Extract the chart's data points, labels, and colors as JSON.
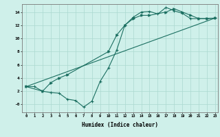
{
  "xlabel": "Humidex (Indice chaleur)",
  "bg_color": "#cff0ea",
  "grid_color": "#aad8d0",
  "line_color": "#1a6e60",
  "xlim": [
    -0.5,
    23.3
  ],
  "ylim": [
    -1.2,
    15.2
  ],
  "xticks": [
    0,
    1,
    2,
    3,
    4,
    5,
    6,
    7,
    8,
    9,
    10,
    11,
    12,
    13,
    14,
    15,
    16,
    17,
    18,
    19,
    20,
    21,
    22,
    23
  ],
  "yticks": [
    0,
    2,
    4,
    6,
    8,
    10,
    12,
    14
  ],
  "ytick_labels": [
    "-0",
    "2",
    "4",
    "6",
    "8",
    "10",
    "12",
    "14"
  ],
  "line1_x": [
    0,
    1,
    2,
    3,
    4,
    5,
    6,
    7,
    8,
    9,
    10,
    11,
    12,
    13,
    14,
    15,
    16,
    17,
    18,
    19,
    20,
    21,
    22,
    23
  ],
  "line1_y": [
    2.7,
    2.7,
    2.0,
    1.8,
    1.7,
    0.8,
    0.6,
    -0.4,
    0.5,
    3.5,
    5.5,
    8.2,
    12.0,
    13.2,
    14.0,
    14.1,
    13.7,
    14.7,
    14.2,
    13.8,
    13.0,
    13.0,
    13.0,
    13.1
  ],
  "line2_x": [
    0,
    2,
    3,
    4,
    5,
    10,
    11,
    12,
    13,
    14,
    15,
    17,
    18,
    19,
    20,
    21,
    22,
    23
  ],
  "line2_y": [
    2.7,
    2.0,
    3.3,
    4.0,
    4.5,
    8.0,
    10.5,
    12.0,
    13.0,
    13.5,
    13.5,
    14.0,
    14.5,
    14.0,
    13.5,
    13.0,
    13.0,
    13.1
  ],
  "line3_x": [
    0,
    23
  ],
  "line3_y": [
    2.7,
    13.1
  ]
}
